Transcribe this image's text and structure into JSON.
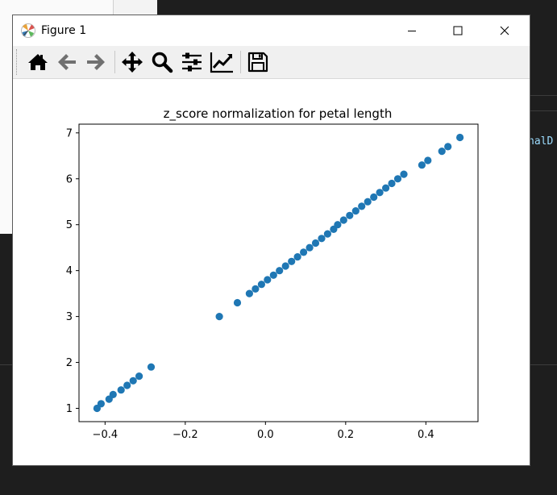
{
  "window": {
    "title": "Figure 1"
  },
  "toolbar": {
    "buttons": [
      {
        "name": "home-icon"
      },
      {
        "name": "back-arrow-icon"
      },
      {
        "name": "forward-arrow-icon"
      },
      {
        "name": "pan-icon"
      },
      {
        "name": "zoom-icon"
      },
      {
        "name": "subplots-config-icon"
      },
      {
        "name": "edit-axis-icon"
      },
      {
        "name": "save-icon"
      }
    ]
  },
  "background": {
    "code_fragment": "nalD"
  },
  "colors": {
    "marker": "#1f77b4",
    "toolbar_bg": "#f0f0f0",
    "editor_bg": "#1e1e1e"
  },
  "chart_data": {
    "type": "scatter",
    "title": "z_score normalization for petal length",
    "xlabel": "",
    "ylabel": "",
    "xlim": [
      -0.465,
      0.53
    ],
    "ylim": [
      0.71,
      7.19
    ],
    "xticks": [
      -0.4,
      -0.2,
      0.0,
      0.2,
      0.4
    ],
    "xtick_labels": [
      "−0.4",
      "−0.2",
      "0.0",
      "0.2",
      "0.4"
    ],
    "yticks": [
      1,
      2,
      3,
      4,
      5,
      6,
      7
    ],
    "ytick_labels": [
      "1",
      "2",
      "3",
      "4",
      "5",
      "6",
      "7"
    ],
    "grid": false,
    "legend": false,
    "points": [
      [
        -0.42,
        1.0
      ],
      [
        -0.41,
        1.1
      ],
      [
        -0.39,
        1.2
      ],
      [
        -0.38,
        1.3
      ],
      [
        -0.36,
        1.4
      ],
      [
        -0.345,
        1.5
      ],
      [
        -0.33,
        1.6
      ],
      [
        -0.315,
        1.7
      ],
      [
        -0.285,
        1.9
      ],
      [
        -0.115,
        3.0
      ],
      [
        -0.07,
        3.3
      ],
      [
        -0.04,
        3.5
      ],
      [
        -0.025,
        3.6
      ],
      [
        -0.01,
        3.7
      ],
      [
        0.005,
        3.8
      ],
      [
        0.02,
        3.9
      ],
      [
        0.035,
        4.0
      ],
      [
        0.05,
        4.1
      ],
      [
        0.065,
        4.2
      ],
      [
        0.08,
        4.3
      ],
      [
        0.095,
        4.4
      ],
      [
        0.11,
        4.5
      ],
      [
        0.125,
        4.6
      ],
      [
        0.14,
        4.7
      ],
      [
        0.155,
        4.8
      ],
      [
        0.17,
        4.9
      ],
      [
        0.18,
        5.0
      ],
      [
        0.195,
        5.1
      ],
      [
        0.21,
        5.2
      ],
      [
        0.225,
        5.3
      ],
      [
        0.24,
        5.4
      ],
      [
        0.255,
        5.5
      ],
      [
        0.27,
        5.6
      ],
      [
        0.285,
        5.7
      ],
      [
        0.3,
        5.8
      ],
      [
        0.315,
        5.9
      ],
      [
        0.33,
        6.0
      ],
      [
        0.345,
        6.1
      ],
      [
        0.39,
        6.3
      ],
      [
        0.405,
        6.4
      ],
      [
        0.44,
        6.6
      ],
      [
        0.455,
        6.7
      ],
      [
        0.485,
        6.9
      ]
    ]
  }
}
